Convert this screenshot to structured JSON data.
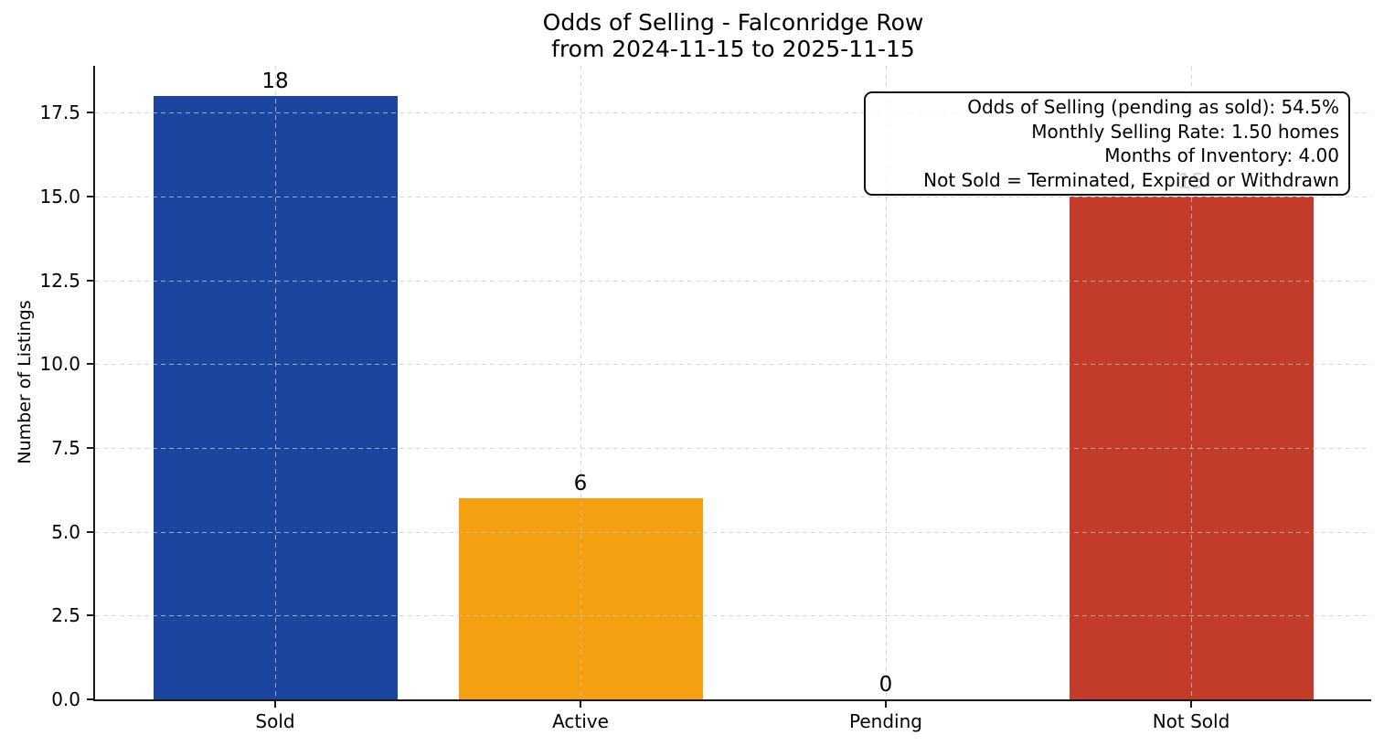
{
  "chart_data": {
    "type": "bar",
    "title": "Odds of Selling - Falconridge Row",
    "subtitle": "from 2024-11-15 to 2025-11-15",
    "categories": [
      "Sold",
      "Active",
      "Pending",
      "Not Sold"
    ],
    "values": [
      18,
      6,
      0,
      15
    ],
    "bar_colors": [
      "#1b459e",
      "#f5a011",
      null,
      "#c23b2b"
    ],
    "value_labels": [
      "18",
      "6",
      "0",
      "15"
    ],
    "xlabel": "",
    "ylabel": "Number of Listings",
    "ylim": [
      0,
      18.9
    ],
    "ytick_labels": [
      "0.0",
      "2.5",
      "5.0",
      "7.5",
      "10.0",
      "12.5",
      "15.0",
      "17.5"
    ],
    "ytick_values": [
      0,
      2.5,
      5,
      7.5,
      10,
      12.5,
      15,
      17.5
    ],
    "grid": true,
    "grid_style": "dashed",
    "legend": false,
    "annotation": {
      "position": "top-right",
      "lines": [
        "Odds of Selling (pending as sold): 54.5%",
        "Monthly Selling Rate: 1.50 homes",
        "Months of Inventory: 4.00",
        "Not Sold = Terminated, Expired or Withdrawn"
      ]
    }
  }
}
